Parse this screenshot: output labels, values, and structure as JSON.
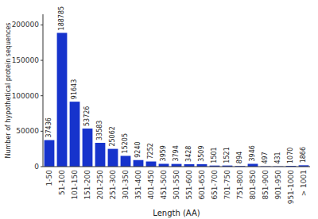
{
  "chart_data": {
    "type": "bar",
    "xlabel": "Length (AA)",
    "ylabel": "Number of hypothetical protein sequences",
    "categories": [
      "1-50",
      "51-100",
      "101-150",
      "151-200",
      "201-250",
      "251-300",
      "301-350",
      "351-400",
      "401-450",
      "451-500",
      "501-550",
      "551-600",
      "601-650",
      "651-700",
      "701-750",
      "751-800",
      "801-850",
      "851-900",
      "901-950",
      "951-1000",
      "> 1001"
    ],
    "values": [
      37436,
      188785,
      91643,
      53726,
      33583,
      25062,
      15205,
      9240,
      7252,
      3959,
      3794,
      3428,
      3509,
      1501,
      1521,
      894,
      3946,
      497,
      431,
      1070,
      1866
    ],
    "color": "#1633cc",
    "ylim": [
      0,
      215000
    ],
    "yticks": [
      0,
      50000,
      100000,
      150000,
      200000
    ],
    "data_labels": true,
    "grid": false
  }
}
